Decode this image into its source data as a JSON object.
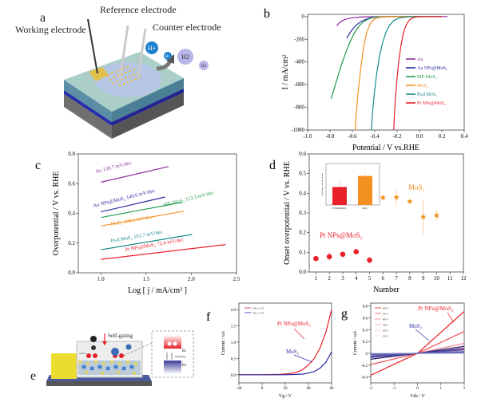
{
  "panels": {
    "a": {
      "label": "a",
      "labels": {
        "reference": "Reference electrode",
        "working": "Working electrode",
        "counter": "Counter electrode"
      },
      "ions": [
        "H+",
        "H+",
        "H2",
        "H2"
      ]
    },
    "e": {
      "label": "e",
      "self_gating": "Self-gating",
      "active": "active",
      "inset_self_gating": "Self-gating",
      "ec": "Ec",
      "ev": "Ev",
      "ions": [
        "H+",
        "H+",
        "H2",
        "H+"
      ]
    }
  },
  "chart_data": [
    {
      "id": "b",
      "panel_label": "b",
      "type": "line",
      "title": "",
      "xlabel": "Potential / V vs.RHE",
      "ylabel": "I / mA/cm2",
      "xlim": [
        -1.0,
        0.4
      ],
      "ylim": [
        -1000,
        20
      ],
      "xticks": [
        -1.0,
        -0.8,
        -0.6,
        -0.4,
        -0.2,
        0.0,
        0.2,
        0.4
      ],
      "xtick_labels": [
        "-1.0",
        "-0.8",
        "-0.6",
        "-0.4",
        "-0.2",
        "0.0",
        "0.2",
        "0.4"
      ],
      "yticks": [
        0,
        -200,
        -400,
        -600,
        -800,
        -1000
      ],
      "ytick_labels": [
        "0",
        "-200",
        "-400",
        "-600",
        "-800",
        "-1000"
      ],
      "legend_position": "center-right",
      "series": [
        {
          "name": "Au",
          "color": "#8b2a9a",
          "x": [
            -0.74,
            -0.72,
            -0.7,
            -0.67,
            -0.64,
            -0.6,
            -0.55,
            -0.5,
            -0.4,
            -0.2,
            0.0,
            0.25
          ],
          "y": [
            -80,
            -58,
            -42,
            -27,
            -17,
            -10,
            -5,
            -2,
            -1,
            0,
            0,
            0
          ]
        },
        {
          "name": "Au NPs@MoS2",
          "color": "#2a2aa0",
          "x": [
            -0.65,
            -0.62,
            -0.59,
            -0.56,
            -0.52,
            -0.48,
            -0.44,
            -0.4,
            -0.35,
            -0.2,
            0.0,
            0.2
          ],
          "y": [
            -190,
            -140,
            -100,
            -70,
            -42,
            -24,
            -12,
            -5,
            -2,
            0,
            0,
            0
          ]
        },
        {
          "name": "ME-MoS2",
          "color": "#1f9a4a",
          "x": [
            -0.79,
            -0.74,
            -0.7,
            -0.66,
            -0.62,
            -0.58,
            -0.54,
            -0.5,
            -0.46,
            -0.42,
            -0.38,
            -0.3,
            0.0,
            0.12
          ],
          "y": [
            -725,
            -560,
            -430,
            -320,
            -220,
            -140,
            -82,
            -45,
            -22,
            -9,
            -3,
            0,
            0,
            0
          ]
        },
        {
          "name": "MoS2",
          "color": "#f39020",
          "x": [
            -0.575,
            -0.565,
            -0.55,
            -0.53,
            -0.51,
            -0.49,
            -0.47,
            -0.44,
            -0.41,
            -0.37,
            -0.3,
            0.0,
            0.1
          ],
          "y": [
            -1000,
            -850,
            -680,
            -500,
            -340,
            -220,
            -135,
            -62,
            -26,
            -8,
            -1,
            0,
            0
          ]
        },
        {
          "name": "Pt_sd MoS2",
          "color": "#1a8a8a",
          "x": [
            -0.43,
            -0.42,
            -0.405,
            -0.385,
            -0.36,
            -0.33,
            -0.3,
            -0.27,
            -0.23,
            -0.18,
            -0.12,
            0.0,
            0.12
          ],
          "y": [
            -1000,
            -850,
            -690,
            -520,
            -360,
            -230,
            -140,
            -80,
            -35,
            -12,
            -3,
            0,
            0
          ]
        },
        {
          "name": "Pt NPs@MoS2",
          "color": "#e8202a",
          "x": [
            -0.23,
            -0.225,
            -0.215,
            -0.2,
            -0.185,
            -0.165,
            -0.145,
            -0.12,
            -0.09,
            -0.06,
            -0.02,
            0.05,
            0.2
          ],
          "y": [
            -1000,
            -880,
            -720,
            -540,
            -390,
            -250,
            -150,
            -75,
            -30,
            -10,
            -2,
            0,
            0
          ]
        }
      ],
      "legend_labels": [
        "Au",
        "Au NPs@MoS2",
        "ME-MoS2",
        "MoS2",
        "Pt_sd MoS2",
        "Pt NPs@MoS2"
      ]
    },
    {
      "id": "c",
      "panel_label": "c",
      "type": "line",
      "title": "",
      "xlabel": "Log [ j / mA/cm2 ]",
      "ylabel": "Overpotential / V vs. RHE",
      "xlim": [
        0.75,
        2.5
      ],
      "ylim": [
        0.0,
        0.8
      ],
      "xticks": [
        1.0,
        1.5,
        2.0,
        2.5
      ],
      "xtick_labels": [
        "1.0",
        "1.5",
        "2.0",
        "2.5"
      ],
      "yticks": [
        0.0,
        0.2,
        0.4,
        0.6,
        0.8
      ],
      "ytick_labels": [
        "0.0",
        "0.2",
        "0.4",
        "0.6",
        "0.8"
      ],
      "series": [
        {
          "name": "Au",
          "annotation": "Au 139.7 mV/dec",
          "color": "#8b2a9a",
          "x": [
            1.0,
            1.75
          ],
          "y": [
            0.61,
            0.715
          ]
        },
        {
          "name": "Au NPs@MoS2",
          "annotation": "Au NPs@MoS2 140.6 mV/dec",
          "color": "#2a2aa0",
          "x": [
            1.0,
            1.71
          ],
          "y": [
            0.41,
            0.51
          ]
        },
        {
          "name": "ME-MoS2",
          "annotation": "ME-MoS2 113.3 mV/dec",
          "color": "#1f9a4a",
          "x": [
            1.0,
            1.9
          ],
          "y": [
            0.372,
            0.474
          ]
        },
        {
          "name": "MoS2",
          "annotation": "MoS2 108.1 mV/dec",
          "color": "#f39020",
          "x": [
            1.0,
            1.92
          ],
          "y": [
            0.315,
            0.415
          ]
        },
        {
          "name": "Pt_sd MoS2",
          "annotation": "Pt_sd MoS2 101.7 mV/dec",
          "color": "#1a8a8a",
          "x": [
            1.0,
            2.01
          ],
          "y": [
            0.155,
            0.258
          ]
        },
        {
          "name": "Pt NPs@MoS2",
          "annotation": "Pt NPs@MoS2 72.4 mV/dec",
          "color": "#e8202a",
          "x": [
            1.0,
            2.38
          ],
          "y": [
            0.09,
            0.19
          ]
        }
      ]
    },
    {
      "id": "d",
      "panel_label": "d",
      "type": "scatter",
      "title": "",
      "xlabel": "Number",
      "ylabel": "Onset overpotential / V vs. RHE",
      "xlim": [
        0.5,
        12
      ],
      "ylim": [
        0.0,
        0.6
      ],
      "xticks": [
        1,
        2,
        3,
        4,
        5,
        6,
        7,
        8,
        9,
        10,
        11,
        12
      ],
      "xtick_labels": [
        "1",
        "2",
        "3",
        "4",
        "5",
        "6",
        "7",
        "8",
        "9",
        "10",
        "11",
        "12"
      ],
      "yticks": [
        0.0,
        0.1,
        0.2,
        0.3,
        0.4,
        0.5,
        0.6
      ],
      "ytick_labels": [
        "0.0",
        "0.1",
        "0.2",
        "0.3",
        "0.4",
        "0.5",
        "0.6"
      ],
      "series": [
        {
          "name": "Pt NPs@MoS2",
          "marker": "circle",
          "color": "#e8202a",
          "x": [
            1,
            2,
            3,
            4,
            5
          ],
          "y": [
            0.068,
            0.078,
            0.09,
            0.103,
            0.06
          ],
          "err": [
            0.008,
            0.022,
            0.01,
            0.006,
            0.017
          ]
        },
        {
          "name": "MoS2",
          "marker": "star",
          "color": "#f39020",
          "x": [
            6,
            7,
            8,
            9,
            10
          ],
          "y": [
            0.378,
            0.38,
            0.358,
            0.28,
            0.288
          ],
          "err": [
            0.01,
            0.04,
            0.01,
            0.09,
            0.028
          ]
        }
      ],
      "annotations": [
        "Pt NPs@MoS2",
        "MoS2"
      ],
      "inset": {
        "type": "bar",
        "ylabel": "Tafel slope / mV per decade",
        "ylim": [
          0,
          150
        ],
        "categories": [
          "Pt NPs@MoS2",
          "MoS2"
        ],
        "values": [
          65,
          105
        ],
        "err": [
          23,
          12
        ],
        "colors": [
          "#e8202a",
          "#f39020"
        ]
      }
    },
    {
      "id": "f",
      "panel_label": "f",
      "type": "line",
      "title": "",
      "xlabel": "Vg / V",
      "ylabel": "Current / uA",
      "xlim": [
        -20,
        60
      ],
      "ylim": [
        -0.25,
        2.2
      ],
      "xticks": [
        -20,
        0,
        20,
        40,
        60
      ],
      "xtick_labels": [
        "-20",
        "0",
        "20",
        "40",
        "60"
      ],
      "yticks": [
        0.0,
        0.5,
        1.0,
        1.5,
        2.0
      ],
      "ytick_labels": [
        "0.0",
        "0.5",
        "1.0",
        "1.5",
        "2.0"
      ],
      "legend": [
        "Vds = 2 V",
        "Vds = 2 V"
      ],
      "annotations": [
        "Pt NPs@MoS2",
        "MoS2"
      ],
      "series": [
        {
          "name": "Pt NPs@MoS2",
          "color": "#e8202a",
          "x": [
            -20,
            0,
            15,
            25,
            30,
            35,
            40,
            45,
            50,
            55,
            60
          ],
          "y": [
            0,
            0,
            0.01,
            0.04,
            0.08,
            0.16,
            0.3,
            0.5,
            0.82,
            1.3,
            2.0
          ]
        },
        {
          "name": "MoS2",
          "color": "#2a2aa0",
          "x": [
            -20,
            0,
            20,
            30,
            35,
            40,
            45,
            50,
            55,
            60
          ],
          "y": [
            0,
            0,
            0,
            0.01,
            0.02,
            0.05,
            0.1,
            0.2,
            0.38,
            0.7
          ]
        }
      ]
    },
    {
      "id": "g",
      "panel_label": "g",
      "type": "line",
      "title": "",
      "xlabel": "Vds / V",
      "ylabel": "Current / uA",
      "xlim": [
        -2,
        2
      ],
      "ylim": [
        -0.5,
        0.85
      ],
      "xticks": [
        -2,
        -1,
        0,
        1,
        2
      ],
      "xtick_labels": [
        "-2",
        "-1",
        "0",
        "1",
        "2"
      ],
      "yticks": [
        -0.4,
        -0.2,
        0,
        0.2,
        0.4,
        0.6,
        0.8
      ],
      "ytick_labels": [
        "-0.4",
        "-0.2",
        "0",
        "0.2",
        "0.4",
        "0.6",
        "0.8"
      ],
      "legend": [
        "60 V",
        "50 V",
        "40 V",
        "30 V",
        "20 V",
        "10 V"
      ],
      "annotations": [
        "Pt NPs@MoS2",
        "MoS2"
      ],
      "series": [
        {
          "name": "Pt NPs@MoS2 60 V",
          "color": "#e8202a",
          "x": [
            -2,
            0,
            2
          ],
          "y": [
            -0.37,
            0,
            0.71
          ]
        },
        {
          "name": "Pt NPs@MoS2 50 V",
          "color": "#ec5058",
          "x": [
            -2,
            0,
            2
          ],
          "y": [
            -0.19,
            0,
            0.37
          ]
        },
        {
          "name": "Pt NPs@MoS2 40 V",
          "color": "#f08088",
          "x": [
            -2,
            0,
            2
          ],
          "y": [
            -0.1,
            0,
            0.17
          ]
        },
        {
          "name": "Pt NPs@MoS2 30 V",
          "color": "#f4a8ae",
          "x": [
            -2,
            0,
            2
          ],
          "y": [
            -0.06,
            0,
            0.1
          ]
        },
        {
          "name": "Pt NPs@MoS2 20 V",
          "color": "#f7c4c8",
          "x": [
            -2,
            0,
            2
          ],
          "y": [
            -0.03,
            0,
            0.05
          ]
        },
        {
          "name": "Pt NPs@MoS2 10 V",
          "color": "#fadadd",
          "x": [
            -2,
            0,
            2
          ],
          "y": [
            -0.015,
            0,
            0.02
          ]
        },
        {
          "name": "MoS2 60 V",
          "color": "#2a2a80",
          "x": [
            -2,
            0,
            2
          ],
          "y": [
            -0.1,
            0,
            0.12
          ]
        },
        {
          "name": "MoS2 50 V",
          "color": "#3a3a90",
          "x": [
            -2,
            0,
            2
          ],
          "y": [
            -0.07,
            0,
            0.08
          ]
        },
        {
          "name": "MoS2 40 V",
          "color": "#4a4aa0",
          "x": [
            -2,
            0,
            2
          ],
          "y": [
            -0.05,
            0,
            0.06
          ]
        },
        {
          "name": "MoS2 30 V",
          "color": "#5a5ab0",
          "x": [
            -2,
            0,
            2
          ],
          "y": [
            -0.03,
            0,
            0.03
          ]
        },
        {
          "name": "MoS2 20 V",
          "color": "#6a6ab8",
          "x": [
            -2,
            0,
            2
          ],
          "y": [
            -0.015,
            0,
            0.015
          ]
        },
        {
          "name": "MoS2 10 V",
          "color": "#7a7ac0",
          "x": [
            -2,
            0,
            2
          ],
          "y": [
            -0.005,
            0,
            0.005
          ]
        }
      ]
    }
  ]
}
